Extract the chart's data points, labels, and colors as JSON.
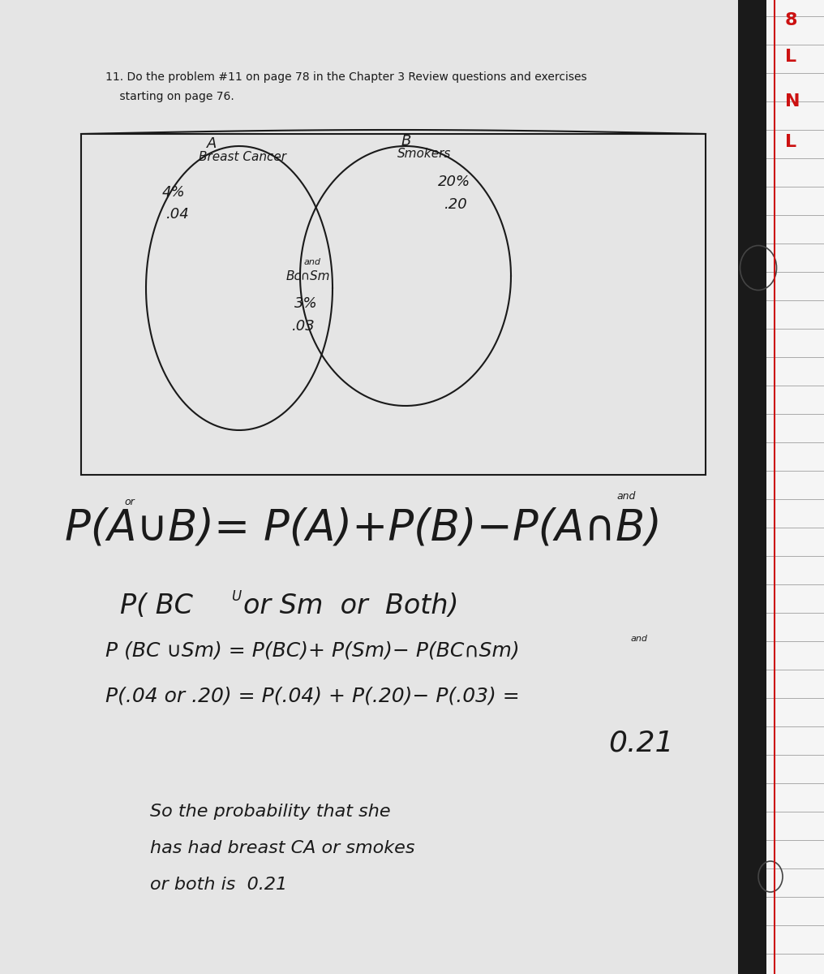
{
  "bg_dark": "#1e1e1e",
  "paper_color": "#e5e5e5",
  "notebook_color": "#f0f0f0",
  "ink_color": "#1a1a1a",
  "red_color": "#cc1111",
  "title_line1": "11. Do the problem #11 on page 78 in the Chapter 3 Review questions and exercises",
  "title_line2": "    starting on page 76.",
  "venn_A_label": "A",
  "venn_B_label": "B",
  "venn_A_sublabel": "Breast Cancer",
  "venn_B_sublabel": "Smokers",
  "venn_A_pct": "4%",
  "venn_A_dec": ".04",
  "venn_B_pct": "20%",
  "venn_B_dec": ".20",
  "venn_int_and": "and",
  "venn_int_label": "Bc∩Sm",
  "venn_int_pct": "3%",
  "venn_int_dec": ".03",
  "formula_or": "or",
  "formula_and": "and",
  "formula": "P(A∪B)= P(A)+P(B)−P(A∩B)",
  "calc1": "P( BC",
  "calc1_u": "U",
  "calc1_rest": "or Sm  or  Both)",
  "calc2": "P (BC ∪Sm) = P(BC)+ P(Sm)− P(BC∩Sm)",
  "calc2_and": "and",
  "calc3": "P(.04 or .20) = P(.04) + P(.20)− P(.03) =",
  "result": "0.21",
  "conc1": "So the probability that she",
  "conc2": "has had breast CA or smokes",
  "conc3": "or both is  0.21",
  "red_letters": [
    "8",
    "L",
    "N",
    "L"
  ]
}
